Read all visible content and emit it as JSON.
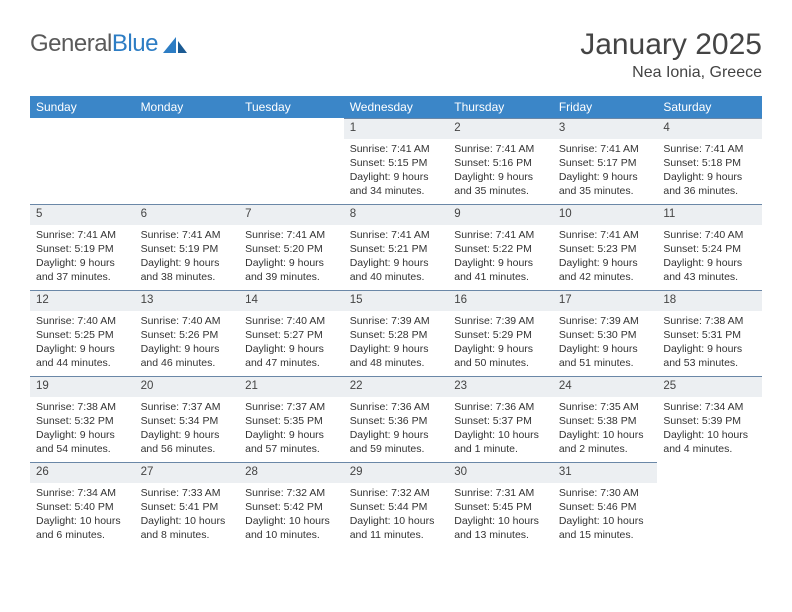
{
  "brand": {
    "name_part1": "General",
    "name_part2": "Blue"
  },
  "title": "January 2025",
  "location": "Nea Ionia, Greece",
  "colors": {
    "header_bg": "#3b86c8",
    "header_text": "#ffffff",
    "daynum_bg": "#eceff2",
    "daynum_border": "#6a87a7",
    "body_text": "#333333",
    "logo_gray": "#5a5a5a",
    "logo_blue": "#2d7dc4"
  },
  "day_headers": [
    "Sunday",
    "Monday",
    "Tuesday",
    "Wednesday",
    "Thursday",
    "Friday",
    "Saturday"
  ],
  "weeks": [
    [
      null,
      null,
      null,
      {
        "n": "1",
        "sr": "7:41 AM",
        "ss": "5:15 PM",
        "dl": "9 hours and 34 minutes."
      },
      {
        "n": "2",
        "sr": "7:41 AM",
        "ss": "5:16 PM",
        "dl": "9 hours and 35 minutes."
      },
      {
        "n": "3",
        "sr": "7:41 AM",
        "ss": "5:17 PM",
        "dl": "9 hours and 35 minutes."
      },
      {
        "n": "4",
        "sr": "7:41 AM",
        "ss": "5:18 PM",
        "dl": "9 hours and 36 minutes."
      }
    ],
    [
      {
        "n": "5",
        "sr": "7:41 AM",
        "ss": "5:19 PM",
        "dl": "9 hours and 37 minutes."
      },
      {
        "n": "6",
        "sr": "7:41 AM",
        "ss": "5:19 PM",
        "dl": "9 hours and 38 minutes."
      },
      {
        "n": "7",
        "sr": "7:41 AM",
        "ss": "5:20 PM",
        "dl": "9 hours and 39 minutes."
      },
      {
        "n": "8",
        "sr": "7:41 AM",
        "ss": "5:21 PM",
        "dl": "9 hours and 40 minutes."
      },
      {
        "n": "9",
        "sr": "7:41 AM",
        "ss": "5:22 PM",
        "dl": "9 hours and 41 minutes."
      },
      {
        "n": "10",
        "sr": "7:41 AM",
        "ss": "5:23 PM",
        "dl": "9 hours and 42 minutes."
      },
      {
        "n": "11",
        "sr": "7:40 AM",
        "ss": "5:24 PM",
        "dl": "9 hours and 43 minutes."
      }
    ],
    [
      {
        "n": "12",
        "sr": "7:40 AM",
        "ss": "5:25 PM",
        "dl": "9 hours and 44 minutes."
      },
      {
        "n": "13",
        "sr": "7:40 AM",
        "ss": "5:26 PM",
        "dl": "9 hours and 46 minutes."
      },
      {
        "n": "14",
        "sr": "7:40 AM",
        "ss": "5:27 PM",
        "dl": "9 hours and 47 minutes."
      },
      {
        "n": "15",
        "sr": "7:39 AM",
        "ss": "5:28 PM",
        "dl": "9 hours and 48 minutes."
      },
      {
        "n": "16",
        "sr": "7:39 AM",
        "ss": "5:29 PM",
        "dl": "9 hours and 50 minutes."
      },
      {
        "n": "17",
        "sr": "7:39 AM",
        "ss": "5:30 PM",
        "dl": "9 hours and 51 minutes."
      },
      {
        "n": "18",
        "sr": "7:38 AM",
        "ss": "5:31 PM",
        "dl": "9 hours and 53 minutes."
      }
    ],
    [
      {
        "n": "19",
        "sr": "7:38 AM",
        "ss": "5:32 PM",
        "dl": "9 hours and 54 minutes."
      },
      {
        "n": "20",
        "sr": "7:37 AM",
        "ss": "5:34 PM",
        "dl": "9 hours and 56 minutes."
      },
      {
        "n": "21",
        "sr": "7:37 AM",
        "ss": "5:35 PM",
        "dl": "9 hours and 57 minutes."
      },
      {
        "n": "22",
        "sr": "7:36 AM",
        "ss": "5:36 PM",
        "dl": "9 hours and 59 minutes."
      },
      {
        "n": "23",
        "sr": "7:36 AM",
        "ss": "5:37 PM",
        "dl": "10 hours and 1 minute."
      },
      {
        "n": "24",
        "sr": "7:35 AM",
        "ss": "5:38 PM",
        "dl": "10 hours and 2 minutes."
      },
      {
        "n": "25",
        "sr": "7:34 AM",
        "ss": "5:39 PM",
        "dl": "10 hours and 4 minutes."
      }
    ],
    [
      {
        "n": "26",
        "sr": "7:34 AM",
        "ss": "5:40 PM",
        "dl": "10 hours and 6 minutes."
      },
      {
        "n": "27",
        "sr": "7:33 AM",
        "ss": "5:41 PM",
        "dl": "10 hours and 8 minutes."
      },
      {
        "n": "28",
        "sr": "7:32 AM",
        "ss": "5:42 PM",
        "dl": "10 hours and 10 minutes."
      },
      {
        "n": "29",
        "sr": "7:32 AM",
        "ss": "5:44 PM",
        "dl": "10 hours and 11 minutes."
      },
      {
        "n": "30",
        "sr": "7:31 AM",
        "ss": "5:45 PM",
        "dl": "10 hours and 13 minutes."
      },
      {
        "n": "31",
        "sr": "7:30 AM",
        "ss": "5:46 PM",
        "dl": "10 hours and 15 minutes."
      },
      null
    ]
  ],
  "labels": {
    "sunrise": "Sunrise:",
    "sunset": "Sunset:",
    "daylight": "Daylight:"
  }
}
